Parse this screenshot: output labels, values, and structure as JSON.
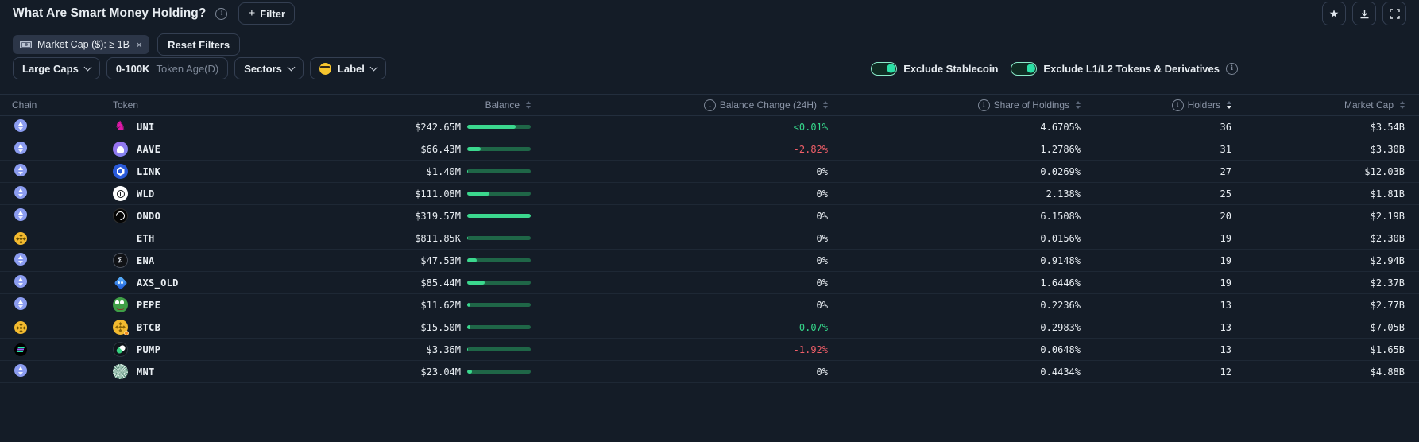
{
  "header": {
    "title": "What Are Smart Money Holding?",
    "filter_button": "Filter"
  },
  "filters": {
    "chip": {
      "icon": "banknote-icon",
      "label": "Market Cap ($): ≥ 1B"
    },
    "reset_button": "Reset Filters"
  },
  "controls": {
    "dropdowns": [
      {
        "label": "Large Caps"
      },
      {
        "value": "0-100K",
        "suffix": "Token Age(D)"
      },
      {
        "label": "Sectors"
      },
      {
        "icon": "sunglasses-emoji-icon",
        "label": "Label"
      }
    ],
    "toggles": [
      {
        "label": "Exclude Stablecoin",
        "on": true
      },
      {
        "label": "Exclude L1/L2 Tokens & Derivatives",
        "on": true
      }
    ]
  },
  "table": {
    "columns": [
      "Chain",
      "Token",
      "Balance",
      "Balance Change (24H)",
      "Share of Holdings",
      "Holders",
      "Market Cap"
    ],
    "sort": {
      "column": "Holders",
      "direction": "desc"
    },
    "rows": [
      {
        "chain": "ethereum",
        "chain_icon": "ethereum-chain-icon",
        "token": "UNI",
        "token_icon": "uniswap-token-icon",
        "balance": "$242.65M",
        "bar_pct": 76,
        "change": "<0.01%",
        "change_dir": "pos",
        "share": "4.6705%",
        "holders": "36",
        "market_cap": "$3.54B"
      },
      {
        "chain": "ethereum",
        "chain_icon": "ethereum-chain-icon",
        "token": "AAVE",
        "token_icon": "aave-token-icon",
        "balance": "$66.43M",
        "bar_pct": 21,
        "change": "-2.82%",
        "change_dir": "neg",
        "share": "1.2786%",
        "holders": "31",
        "market_cap": "$3.30B"
      },
      {
        "chain": "ethereum",
        "chain_icon": "ethereum-chain-icon",
        "token": "LINK",
        "token_icon": "chainlink-token-icon",
        "balance": "$1.40M",
        "bar_pct": 1,
        "change": "0%",
        "change_dir": "neutral",
        "share": "0.0269%",
        "holders": "27",
        "market_cap": "$12.03B"
      },
      {
        "chain": "ethereum",
        "chain_icon": "ethereum-chain-icon",
        "token": "WLD",
        "token_icon": "worldcoin-token-icon",
        "balance": "$111.08M",
        "bar_pct": 35,
        "change": "0%",
        "change_dir": "neutral",
        "share": "2.138%",
        "holders": "25",
        "market_cap": "$1.81B"
      },
      {
        "chain": "ethereum",
        "chain_icon": "ethereum-chain-icon",
        "token": "ONDO",
        "token_icon": "ondo-token-icon",
        "balance": "$319.57M",
        "bar_pct": 100,
        "change": "0%",
        "change_dir": "neutral",
        "share": "6.1508%",
        "holders": "20",
        "market_cap": "$2.19B"
      },
      {
        "chain": "bnb",
        "chain_icon": "bnb-chain-icon",
        "token": "ETH",
        "token_icon": "weth-token-icon",
        "balance": "$811.85K",
        "bar_pct": 1,
        "change": "0%",
        "change_dir": "neutral",
        "share": "0.0156%",
        "holders": "19",
        "market_cap": "$2.30B"
      },
      {
        "chain": "ethereum",
        "chain_icon": "ethereum-chain-icon",
        "token": "ENA",
        "token_icon": "ethena-token-icon",
        "balance": "$47.53M",
        "bar_pct": 15,
        "change": "0%",
        "change_dir": "neutral",
        "share": "0.9148%",
        "holders": "19",
        "market_cap": "$2.94B"
      },
      {
        "chain": "ethereum",
        "chain_icon": "ethereum-chain-icon",
        "token": "AXS_OLD",
        "token_icon": "axie-token-icon",
        "balance": "$85.44M",
        "bar_pct": 27,
        "change": "0%",
        "change_dir": "neutral",
        "share": "1.6446%",
        "holders": "19",
        "market_cap": "$2.37B"
      },
      {
        "chain": "ethereum",
        "chain_icon": "ethereum-chain-icon",
        "token": "PEPE",
        "token_icon": "pepe-token-icon",
        "balance": "$11.62M",
        "bar_pct": 4,
        "change": "0%",
        "change_dir": "neutral",
        "share": "0.2236%",
        "holders": "13",
        "market_cap": "$2.77B"
      },
      {
        "chain": "bnb",
        "chain_icon": "bnb-chain-icon",
        "token": "BTCB",
        "token_icon": "btcb-token-icon",
        "balance": "$15.50M",
        "bar_pct": 5,
        "change": "0.07%",
        "change_dir": "pos",
        "share": "0.2983%",
        "holders": "13",
        "market_cap": "$7.05B"
      },
      {
        "chain": "solana",
        "chain_icon": "solana-chain-icon",
        "token": "PUMP",
        "token_icon": "pump-token-icon",
        "balance": "$3.36M",
        "bar_pct": 1,
        "change": "-1.92%",
        "change_dir": "neg",
        "share": "0.0648%",
        "holders": "13",
        "market_cap": "$1.65B"
      },
      {
        "chain": "ethereum",
        "chain_icon": "ethereum-chain-icon",
        "token": "MNT",
        "token_icon": "mantle-token-icon",
        "balance": "$23.04M",
        "bar_pct": 7,
        "change": "0%",
        "change_dir": "neutral",
        "share": "0.4434%",
        "holders": "12",
        "market_cap": "$4.88B"
      }
    ]
  },
  "colors": {
    "background": "#141c27",
    "accent_green": "#2be0a6",
    "positive": "#36d98c",
    "negative": "#ef5e68",
    "bar_fill": "#3bd88e",
    "bar_track": "#1f6647"
  }
}
